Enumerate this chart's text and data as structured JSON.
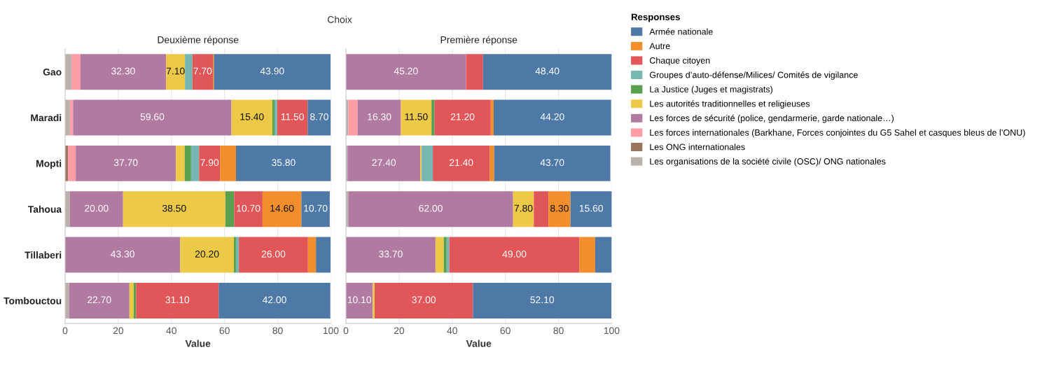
{
  "chart_data": [
    {
      "type": "bar",
      "orientation": "horizontal",
      "stacked": true,
      "title": "Deuxième réponse",
      "xlabel": "Value",
      "annotations": [
        "Choix"
      ],
      "legend": "right",
      "legend_title": "Responses",
      "grid": "x",
      "xlim": [
        0,
        100
      ],
      "xticks": [
        0,
        20,
        40,
        60,
        80,
        100
      ],
      "categories": [
        "Gao",
        "Maradi",
        "Mopti",
        "Tahoua",
        "Tillaberi",
        "Tombouctou"
      ],
      "series": [
        {
          "name": "Les organisations de la société civile (OSC)/ ONG nationales",
          "color": "#bab0ac",
          "values": [
            2.4,
            1.8,
            null,
            1.8,
            null,
            1.5
          ]
        },
        {
          "name": "Les ONG internationales",
          "color": "#9c755f",
          "values": [
            null,
            null,
            1.1,
            null,
            null,
            null
          ]
        },
        {
          "name": "Les forces internationales (Barkhane, Forces conjointes du G5 Sahel et casques bleus de l’ONU)",
          "color": "#ff9da7",
          "values": [
            3.3,
            1.2,
            2.9,
            null,
            null,
            null
          ]
        },
        {
          "name": "Les forces de sécurité (police, gendarmerie, garde nationale…)",
          "color": "#b07aa1",
          "values": [
            32.3,
            59.6,
            37.7,
            20.0,
            43.3,
            22.7
          ],
          "value_labels": [
            "32.30",
            "59.60",
            "37.70",
            "20.00",
            "43.30",
            "22.70"
          ]
        },
        {
          "name": "Les autorités traditionnelles et religieuses",
          "color": "#edc948",
          "values": [
            7.1,
            15.4,
            3.3,
            38.5,
            20.2,
            1.6
          ],
          "value_labels": [
            "7.10",
            "15.40",
            null,
            "38.50",
            "20.20",
            null
          ]
        },
        {
          "name": "La Justice (Juges et magistrats)",
          "color": "#59a14f",
          "values": [
            null,
            0.8,
            2.4,
            3.3,
            0.8,
            0.9
          ]
        },
        {
          "name": "Groupes d’auto-défense/Milices/ Comités de vigilance",
          "color": "#76b7b2",
          "values": [
            2.8,
            1.0,
            3.0,
            null,
            1.1,
            null
          ]
        },
        {
          "name": "Chaque citoyen",
          "color": "#e15759",
          "values": [
            7.7,
            11.5,
            7.9,
            10.7,
            26.0,
            31.1
          ],
          "value_labels": [
            "7.70",
            "11.50",
            "7.90",
            "10.70",
            "26.00",
            "31.10"
          ]
        },
        {
          "name": "Autre",
          "color": "#f28e2b",
          "values": [
            0.4,
            null,
            6.0,
            14.6,
            3.0,
            null
          ],
          "value_labels": [
            null,
            null,
            null,
            "14.60",
            null,
            null
          ]
        },
        {
          "name": "Armée nationale",
          "color": "#4e79a7",
          "values": [
            43.9,
            8.7,
            35.8,
            10.7,
            5.5,
            42.0
          ],
          "value_labels": [
            "43.90",
            "8.70",
            "35.80",
            "10.70",
            null,
            "42.00"
          ]
        }
      ]
    },
    {
      "type": "bar",
      "orientation": "horizontal",
      "stacked": true,
      "title": "Première réponse",
      "xlabel": "Value",
      "grid": "x",
      "tick_labels": "x",
      "xlim": [
        0,
        100
      ],
      "xticks": [
        0,
        20,
        40,
        60,
        80,
        100
      ],
      "categories": [
        null,
        null,
        null,
        null,
        null,
        null
      ],
      "series": [
        {
          "color": "#bab0ac",
          "values": [
            null,
            0.9,
            0.6,
            0.9,
            null,
            null
          ]
        },
        {
          "color": "#ff9da7",
          "values": [
            null,
            3.5,
            null,
            null,
            null,
            null
          ]
        },
        {
          "color": "#b07aa1",
          "values": [
            45.2,
            16.3,
            27.4,
            62.0,
            33.7,
            10.1
          ],
          "value_labels": [
            "45.20",
            "16.30",
            "27.40",
            "62.00",
            "33.70",
            "10.10"
          ]
        },
        {
          "color": "#edc948",
          "values": [
            null,
            11.5,
            0.5,
            7.8,
            3.1,
            0.7
          ],
          "value_labels": [
            null,
            "11.50",
            null,
            "7.80",
            null,
            null
          ]
        },
        {
          "color": "#59a14f",
          "values": [
            null,
            1.1,
            null,
            null,
            1.1,
            null
          ]
        },
        {
          "color": "#76b7b2",
          "values": [
            null,
            null,
            4.2,
            null,
            1.0,
            null
          ]
        },
        {
          "color": "#e15759",
          "values": [
            6.4,
            21.2,
            21.4,
            5.5,
            49.0,
            37.0
          ],
          "value_labels": [
            null,
            "21.20",
            "21.40",
            null,
            "49.00",
            "37.00"
          ]
        },
        {
          "color": "#f28e2b",
          "values": [
            null,
            1.1,
            1.7,
            8.3,
            5.9,
            null
          ],
          "value_labels": [
            null,
            null,
            null,
            "8.30",
            null,
            null
          ]
        },
        {
          "color": "#4e79a7",
          "values": [
            48.4,
            44.2,
            43.7,
            15.6,
            6.2,
            52.1
          ],
          "value_labels": [
            "48.40",
            "44.20",
            "43.70",
            "15.60",
            null,
            "52.10"
          ]
        }
      ]
    }
  ]
}
